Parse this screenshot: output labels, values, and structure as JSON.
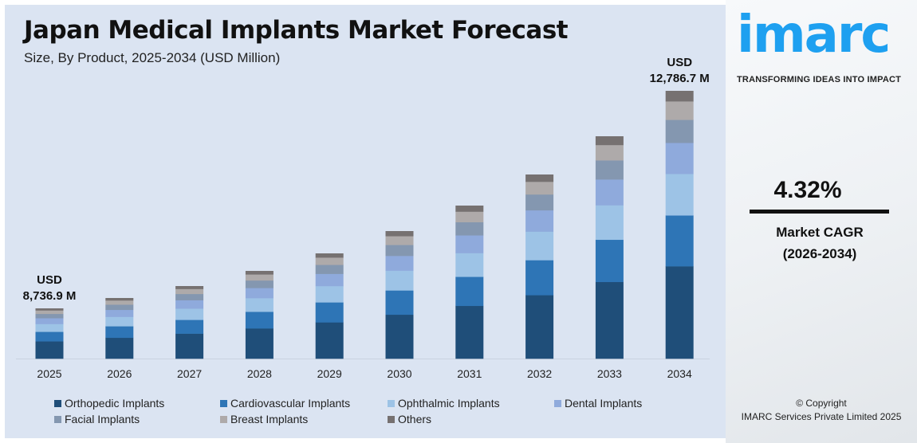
{
  "title": "Japan Medical Implants Market Forecast",
  "subtitle": "Size, By Product, 2025-2034 (USD Million)",
  "chart_data": {
    "type": "bar",
    "stacked": true,
    "categories": [
      "2025",
      "2026",
      "2027",
      "2028",
      "2029",
      "2030",
      "2031",
      "2032",
      "2033",
      "2034"
    ],
    "relative_totals": [
      63,
      76,
      91,
      110,
      132,
      160,
      192,
      231,
      279,
      336
    ],
    "series": [
      {
        "name": "Orthopedic Implants",
        "share": 0.345,
        "color": "#1f4e79"
      },
      {
        "name": "Cardiovascular Implants",
        "share": 0.19,
        "color": "#2e75b6"
      },
      {
        "name": "Ophthalmic Implants",
        "share": 0.155,
        "color": "#9dc3e6"
      },
      {
        "name": "Dental Implants",
        "share": 0.116,
        "color": "#8faadc"
      },
      {
        "name": "Facial Implants",
        "share": 0.086,
        "color": "#8497b0"
      },
      {
        "name": "Breast Implants",
        "share": 0.069,
        "color": "#aeaaaa"
      },
      {
        "name": "Others",
        "share": 0.039,
        "color": "#767171"
      }
    ],
    "annotations": [
      {
        "category": "2025",
        "line1": "USD",
        "line2": "8,736.9 M"
      },
      {
        "category": "2034",
        "line1": "USD",
        "line2": "12,786.7 M"
      }
    ],
    "legend_position": "bottom",
    "grid": false
  },
  "brand": {
    "logo": "imarc",
    "tagline": "TRANSFORMING IDEAS INTO IMPACT",
    "color": "#1ea0f0"
  },
  "cagr": {
    "value": "4.32%",
    "label": "Market CAGR",
    "period": "(2026-2034)"
  },
  "copyright": {
    "line1": "© Copyright",
    "line2": "IMARC Services Private Limited 2025"
  }
}
